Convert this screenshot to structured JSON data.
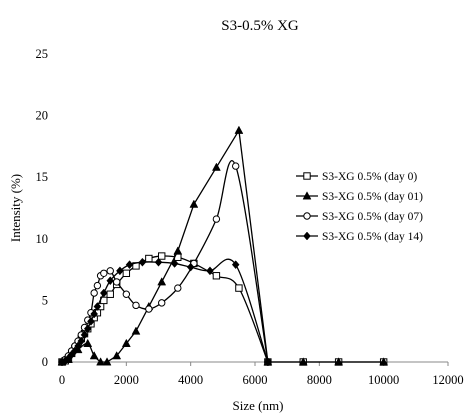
{
  "chart_data": {
    "type": "line",
    "title": "S3-0.5% XG",
    "xlabel": "Size (nm)",
    "ylabel": "Intensity (%)",
    "xlim": [
      0,
      12000
    ],
    "ylim": [
      0,
      25
    ],
    "x_ticks": [
      "0",
      "2000",
      "4000",
      "6000",
      "8000",
      "10000",
      "12000"
    ],
    "y_ticks": [
      "0",
      "5",
      "10",
      "15",
      "20",
      "25"
    ],
    "grid": false,
    "legend_position": "right",
    "series": [
      {
        "name": "S3-XG 0.5% (day 0)",
        "marker": "open-square",
        "color": "#000000",
        "x": [
          0,
          100,
          200,
          300,
          400,
          500,
          600,
          700,
          800,
          900,
          1000,
          1100,
          1200,
          1300,
          1500,
          1700,
          2000,
          2300,
          2700,
          3100,
          3600,
          4100,
          4800,
          5500,
          6400,
          7500,
          8600,
          10000
        ],
        "y": [
          0,
          0.1,
          0.3,
          0.7,
          1.1,
          1.5,
          1.9,
          2.3,
          2.7,
          3.1,
          3.6,
          4.0,
          4.5,
          5.0,
          5.5,
          6.3,
          7.2,
          7.8,
          8.4,
          8.6,
          8.5,
          8.0,
          7.0,
          6.0,
          0,
          0,
          0,
          0
        ]
      },
      {
        "name": "S3-XG 0.5% (day 01)",
        "marker": "filled-triangle",
        "color": "#000000",
        "x": [
          0,
          200,
          500,
          800,
          1000,
          1200,
          1400,
          1700,
          2000,
          2300,
          2700,
          3100,
          3600,
          4100,
          4800,
          5500,
          6400,
          7500,
          8600,
          10000
        ],
        "y": [
          0,
          0.2,
          1.0,
          1.5,
          0.5,
          0,
          0,
          0.5,
          1.5,
          2.5,
          4.5,
          6.5,
          9.0,
          12.8,
          15.8,
          18.8,
          0,
          0,
          0,
          0
        ]
      },
      {
        "name": "S3-XG 0.5% (day 07)",
        "marker": "open-circle",
        "color": "#000000",
        "x": [
          0,
          100,
          200,
          300,
          400,
          500,
          600,
          700,
          800,
          900,
          1000,
          1100,
          1200,
          1300,
          1500,
          1700,
          2000,
          2300,
          2700,
          3100,
          3600,
          4100,
          4800,
          5400,
          6400
        ],
        "y": [
          0,
          0.2,
          0.5,
          0.9,
          1.3,
          1.7,
          2.2,
          2.8,
          3.4,
          4.0,
          5.6,
          6.2,
          7.0,
          7.2,
          7.4,
          6.5,
          5.5,
          4.6,
          4.3,
          4.8,
          6.0,
          8.0,
          11.6,
          15.9,
          0
        ]
      },
      {
        "name": "S3-XG 0.5% (day 14)",
        "marker": "filled-diamond",
        "color": "#000000",
        "x": [
          0,
          100,
          200,
          300,
          400,
          500,
          600,
          700,
          800,
          900,
          1000,
          1100,
          1300,
          1500,
          1800,
          2100,
          2500,
          3000,
          3500,
          4000,
          4600,
          5400,
          6400
        ],
        "y": [
          0,
          0.1,
          0.3,
          0.6,
          0.9,
          1.3,
          1.7,
          2.2,
          2.7,
          3.3,
          3.9,
          4.5,
          5.6,
          6.6,
          7.4,
          7.9,
          8.1,
          8.1,
          8.0,
          7.7,
          7.4,
          7.9,
          0
        ]
      }
    ]
  }
}
